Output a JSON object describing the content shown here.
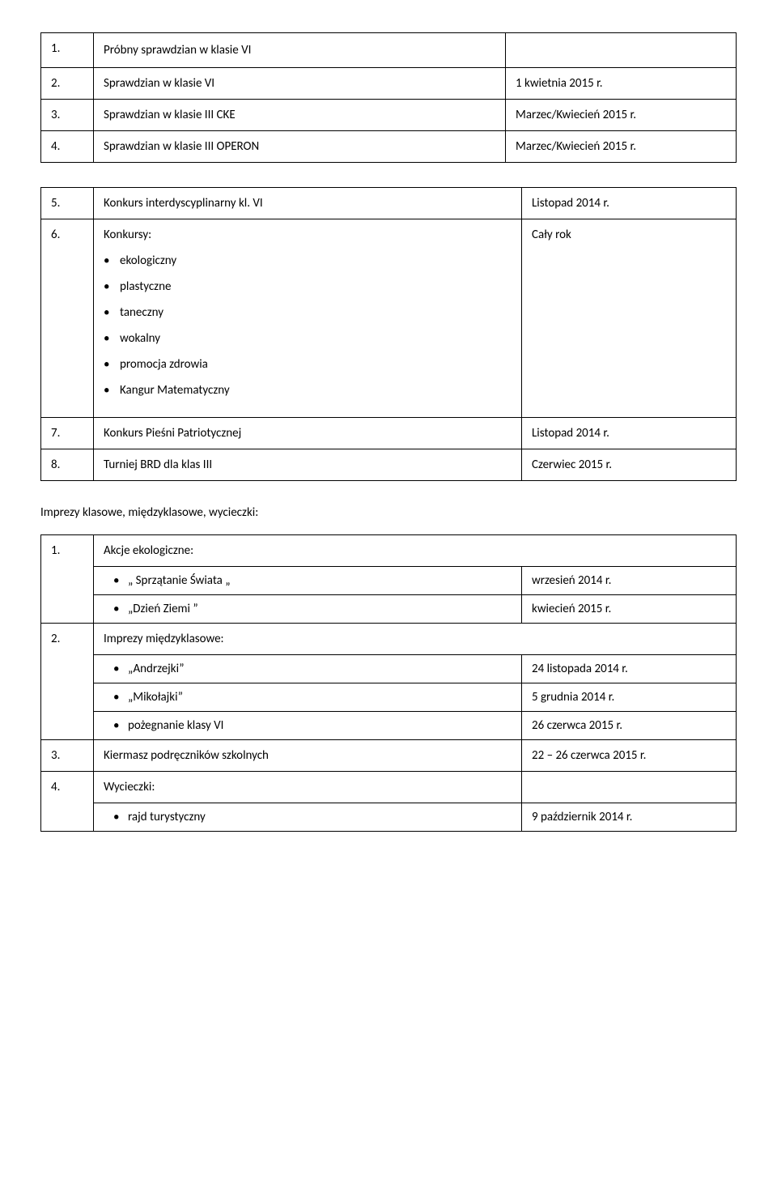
{
  "table1": {
    "rows": [
      {
        "num": "1.",
        "text": "Próbny sprawdzian w klasie VI",
        "right": ""
      },
      {
        "num": "2.",
        "text": "Sprawdzian w klasie VI",
        "right": "1 kwietnia 2015 r."
      },
      {
        "num": "3.",
        "text": "Sprawdzian w klasie III CKE",
        "right": "Marzec/Kwiecień 2015 r."
      },
      {
        "num": "4.",
        "text": "Sprawdzian w klasie III OPERON",
        "right": "Marzec/Kwiecień 2015 r."
      }
    ]
  },
  "table2": {
    "row5": {
      "num": "5.",
      "text": "Konkurs interdyscyplinarny kl. VI",
      "right": "Listopad 2014 r."
    },
    "row6": {
      "num": "6.",
      "lead": "Konkursy:",
      "items": [
        "ekologiczny",
        "plastyczne",
        "taneczny",
        "wokalny",
        "promocja zdrowia",
        "Kangur Matematyczny"
      ],
      "right": "Cały rok"
    },
    "row7": {
      "num": "7.",
      "text": "Konkurs Pieśni Patriotycznej",
      "right": "Listopad 2014 r."
    },
    "row8": {
      "num": "8.",
      "text": "Turniej BRD dla klas III",
      "right": "Czerwiec 2015 r."
    }
  },
  "heading": "Imprezy klasowe, międzyklasowe, wycieczki:",
  "table3": {
    "row1": {
      "num": "1.",
      "text": "Akcje ekologiczne:"
    },
    "row1a": {
      "bullet": "„ Sprzątanie Świata „",
      "right": "wrzesień 2014 r."
    },
    "row1b": {
      "bullet": "„Dzień Ziemi ”",
      "right": "kwiecień 2015 r."
    },
    "row2": {
      "num": "2.",
      "text": "Imprezy międzyklasowe:"
    },
    "row2a": {
      "bullet": "„Andrzejki”",
      "right": "24 listopada 2014 r."
    },
    "row2b": {
      "bullet": "„Mikołajki”",
      "right": "5 grudnia 2014 r."
    },
    "row2c": {
      "bullet": "pożegnanie klasy VI",
      "right": "26 czerwca 2015 r."
    },
    "row3": {
      "num": "3.",
      "text": "Kiermasz podręczników szkolnych",
      "right": "22 – 26 czerwca 2015 r."
    },
    "row4": {
      "num": "4.",
      "text": "Wycieczki:"
    },
    "row4a": {
      "bullet": "rajd turystyczny",
      "right": "9 październik 2014 r."
    }
  }
}
